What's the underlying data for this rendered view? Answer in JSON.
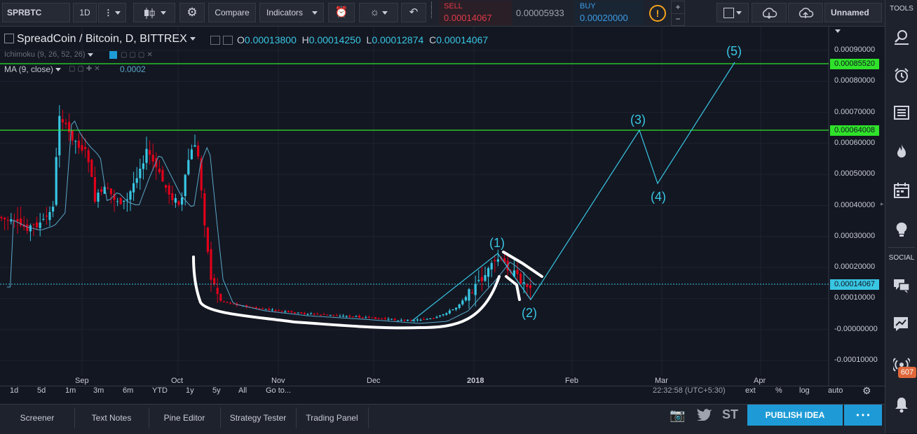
{
  "toolbar": {
    "symbol": "SPRBTC",
    "interval": "1D",
    "compare": "Compare",
    "indicators": "Indicators",
    "sell_label": "SELL",
    "sell_price": "0.00014067",
    "spread": "0.00005933",
    "buy_label": "BUY",
    "buy_price": "0.00020000",
    "layout_name": "Unnamed"
  },
  "legend": {
    "title": "SpreadCoin / Bitcoin, D, BITTREX",
    "o_label": "O",
    "o": "0.00013800",
    "h_label": "H",
    "h": "0.00014250",
    "l_label": "L",
    "l": "0.00012874",
    "c_label": "C",
    "c": "0.00014067",
    "ichimoku": "Ichimoku (9, 26, 52, 26)",
    "ma": "MA (9, close)",
    "ma_value": "0.0002"
  },
  "price_axis": [
    "0.00090000",
    "0.00080000",
    "0.00070000",
    "0.00060000",
    "0.00050000",
    "0.00040000",
    "0.00030000",
    "0.00020000",
    "0.00010000",
    "-0.00000000",
    "-0.00010000"
  ],
  "price_labels": {
    "upper_line": "0.00085520",
    "lower_line": "0.00064008",
    "last": "0.00014067"
  },
  "time_axis": [
    "Sep",
    "Oct",
    "Nov",
    "Dec",
    "2018",
    "Feb",
    "Mar",
    "Apr"
  ],
  "wave_labels": [
    "(1)",
    "(2)",
    "(3)",
    "(4)",
    "(5)"
  ],
  "periods": [
    "1d",
    "5d",
    "1m",
    "3m",
    "6m",
    "YTD",
    "1y",
    "5y",
    "All",
    "Go to..."
  ],
  "axis_options": {
    "clock": "22:32:58 (UTC+5:30)",
    "ext": "ext",
    "pct": "%",
    "log": "log",
    "auto": "auto"
  },
  "bottom_tabs": [
    "Screener",
    "Text Notes",
    "Pine Editor",
    "Strategy Tester",
    "Trading Panel"
  ],
  "publish": "PUBLISH IDEA",
  "more": "• • •",
  "st_label": "ST",
  "sidebar": {
    "tools_title": "TOOLS",
    "social_title": "SOCIAL",
    "badge": "607"
  },
  "colors": {
    "bg": "#131722",
    "up": "#38c6e3",
    "down": "#e0001a",
    "hline": "#2fe22a",
    "accent": "#1e9bd7"
  }
}
